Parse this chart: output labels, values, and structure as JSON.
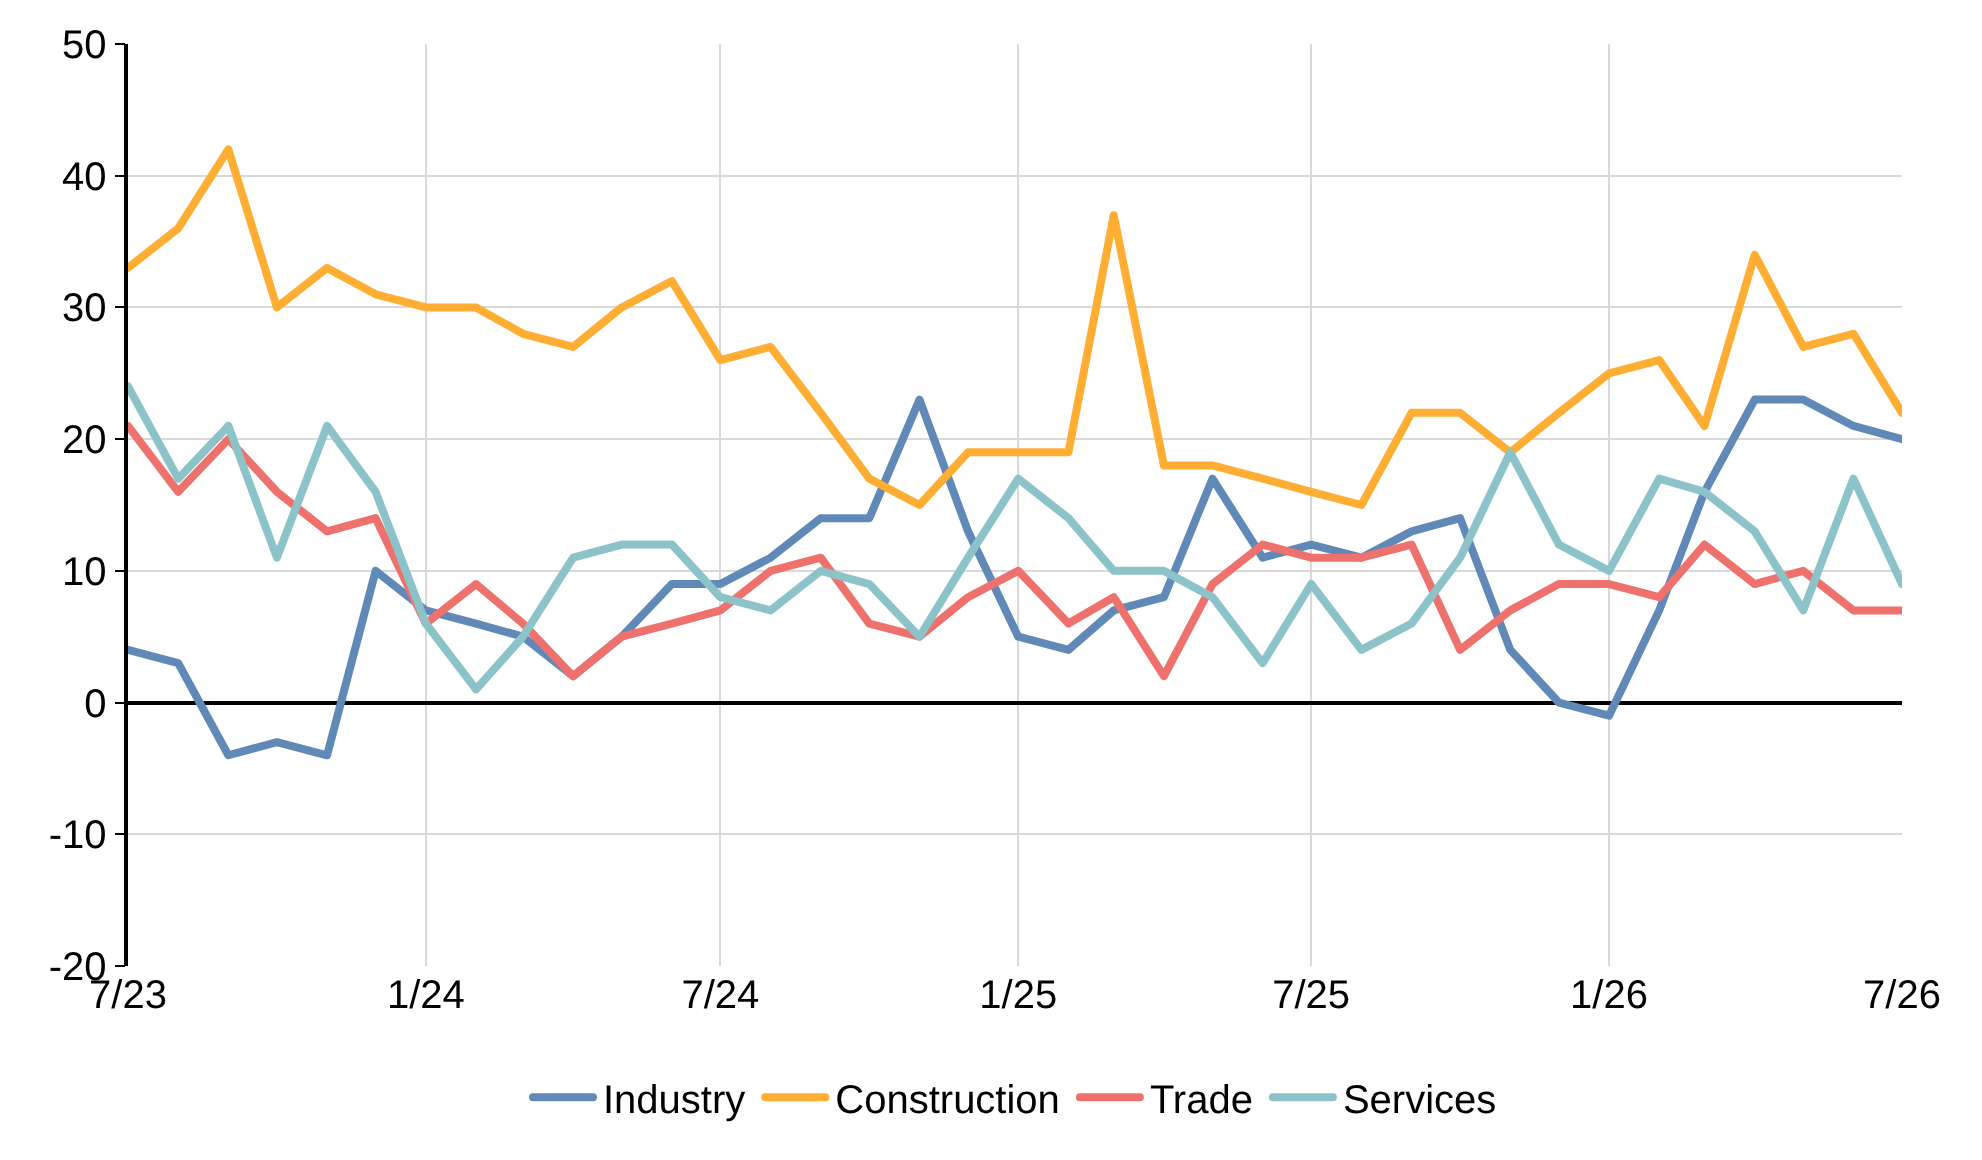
{
  "chart_data": {
    "type": "line",
    "x": [
      "2023-07",
      "2023-08",
      "2023-09",
      "2023-10",
      "2023-11",
      "2023-12",
      "2024-01",
      "2024-02",
      "2024-03",
      "2024-04",
      "2024-05",
      "2024-06",
      "2024-07",
      "2024-08",
      "2024-09",
      "2024-10",
      "2024-11",
      "2024-12",
      "2025-01",
      "2025-02",
      "2025-03",
      "2025-04",
      "2025-05",
      "2025-06",
      "2025-07",
      "2025-08",
      "2025-09",
      "2025-10",
      "2025-11",
      "2025-12",
      "2026-01",
      "2026-02",
      "2026-03",
      "2026-04",
      "2026-05",
      "2026-06",
      "2026-07"
    ],
    "series": [
      {
        "name": "Industry",
        "color": "#6189b7",
        "values": [
          4,
          3,
          -4,
          -3,
          -4,
          10,
          7,
          6,
          5,
          2,
          5,
          9,
          9,
          11,
          14,
          14,
          23,
          13,
          5,
          4,
          7,
          8,
          17,
          11,
          12,
          11,
          13,
          14,
          4,
          0,
          -1,
          7,
          16,
          23,
          23,
          21,
          20
        ]
      },
      {
        "name": "Construction",
        "color": "#ffad33",
        "values": [
          33,
          36,
          42,
          30,
          33,
          31,
          30,
          30,
          28,
          27,
          30,
          32,
          26,
          27,
          22,
          17,
          15,
          19,
          19,
          19,
          37,
          18,
          18,
          17,
          16,
          15,
          22,
          22,
          19,
          22,
          25,
          26,
          21,
          34,
          27,
          28,
          22
        ]
      },
      {
        "name": "Trade",
        "color": "#ef716d",
        "values": [
          21,
          16,
          20,
          16,
          13,
          14,
          6,
          9,
          6,
          2,
          5,
          6,
          7,
          10,
          11,
          6,
          5,
          8,
          10,
          6,
          8,
          2,
          9,
          12,
          11,
          11,
          12,
          4,
          7,
          9,
          9,
          8,
          12,
          9,
          10,
          7,
          7
        ]
      },
      {
        "name": "Services",
        "color": "#8cc3c8",
        "values": [
          24,
          17,
          21,
          11,
          21,
          16,
          6,
          1,
          5,
          11,
          12,
          12,
          8,
          7,
          10,
          9,
          5,
          11,
          17,
          14,
          10,
          10,
          8,
          3,
          9,
          4,
          6,
          11,
          19,
          12,
          10,
          17,
          16,
          13,
          7,
          17,
          9
        ]
      }
    ],
    "xlim": [
      "2023-07",
      "2026-07"
    ],
    "xticks": [
      {
        "value": "2023-07",
        "label": "7/23"
      },
      {
        "value": "2024-01",
        "label": "1/24"
      },
      {
        "value": "2024-07",
        "label": "7/24"
      },
      {
        "value": "2025-01",
        "label": "1/25"
      },
      {
        "value": "2025-07",
        "label": "7/25"
      },
      {
        "value": "2026-01",
        "label": "1/26"
      },
      {
        "value": "2026-07",
        "label": "7/26"
      }
    ],
    "ylim": [
      -20,
      50
    ],
    "yticks": [
      -20,
      -10,
      0,
      10,
      20,
      30,
      40,
      50
    ],
    "grid": true,
    "legend": "bottom",
    "marker": "none",
    "line_style": "solid"
  }
}
